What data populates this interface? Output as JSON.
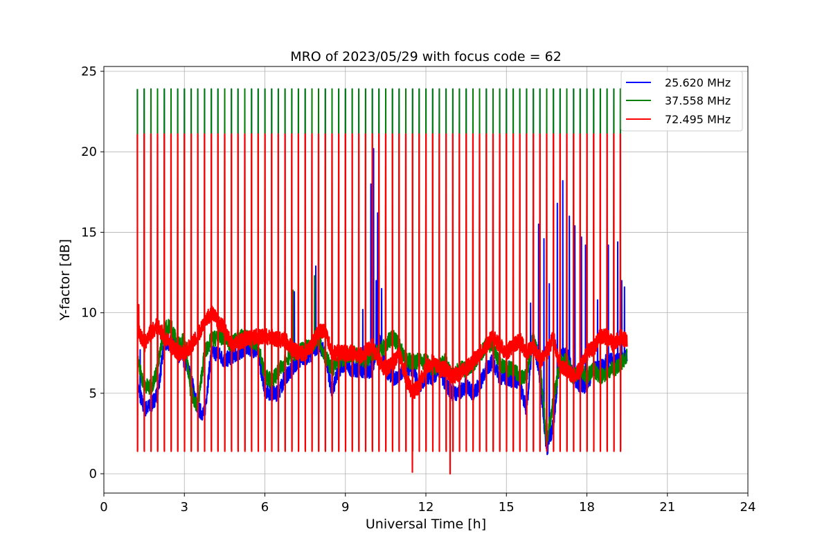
{
  "chart_data": {
    "type": "line",
    "title": "MRO of 2023/05/29 with focus code = 62",
    "xlabel": "Universal Time [h]",
    "ylabel": "Y-factor [dB]",
    "xlim": [
      0,
      24
    ],
    "ylim": [
      -1.2,
      25.3
    ],
    "xticks": [
      0,
      3,
      6,
      9,
      12,
      15,
      18,
      21,
      24
    ],
    "yticks": [
      0,
      5,
      10,
      15,
      20,
      25
    ],
    "grid": true,
    "legend_position": "top-right",
    "pulse_period_h": 0.25,
    "series": [
      {
        "name": "25.620 MHz",
        "color": "#0000ff",
        "pulse_peak": 23.9,
        "pulse_low": 1.5,
        "x": [
          1.25,
          1.5,
          1.75,
          2.0,
          2.25,
          2.5,
          2.75,
          3.0,
          3.25,
          3.5,
          3.75,
          4.0,
          4.25,
          4.5,
          4.75,
          5.0,
          5.25,
          5.5,
          5.75,
          6.0,
          6.25,
          6.5,
          6.75,
          7.0,
          7.25,
          7.5,
          7.75,
          8.0,
          8.25,
          8.5,
          8.75,
          9.0,
          9.25,
          9.5,
          9.75,
          10.0,
          10.25,
          10.5,
          10.75,
          11.0,
          11.25,
          11.5,
          11.75,
          12.0,
          12.25,
          12.5,
          12.75,
          13.0,
          13.25,
          13.5,
          13.75,
          14.0,
          14.25,
          14.5,
          14.75,
          15.0,
          15.25,
          15.5,
          15.75,
          16.0,
          16.25,
          16.5,
          16.75,
          17.0,
          17.25,
          17.5,
          17.75,
          18.0,
          18.25,
          18.5,
          18.75,
          19.0,
          19.25,
          19.5
        ],
        "y": [
          5.5,
          4.0,
          4.2,
          5.0,
          8.0,
          8.2,
          7.5,
          7.0,
          6.0,
          4.0,
          3.7,
          7.5,
          7.5,
          7.0,
          7.3,
          7.5,
          7.8,
          7.8,
          7.5,
          5.2,
          5.0,
          5.0,
          6.0,
          6.5,
          7.0,
          7.2,
          7.5,
          8.0,
          7.5,
          5.0,
          6.5,
          6.8,
          6.5,
          6.5,
          6.3,
          6.5,
          8.5,
          6.5,
          6.0,
          6.0,
          6.5,
          6.5,
          5.5,
          6.0,
          6.0,
          6.5,
          5.5,
          5.0,
          5.0,
          5.5,
          5.0,
          5.5,
          6.5,
          7.0,
          6.0,
          6.0,
          5.8,
          5.5,
          4.0,
          8.5,
          6.0,
          1.5,
          3.0,
          7.5,
          7.5,
          6.0,
          5.5,
          5.5,
          6.5,
          6.5,
          7.0,
          7.0,
          7.0,
          7.5
        ],
        "spikes": [
          [
            1.35,
            7.7
          ],
          [
            3.5,
            1.1
          ],
          [
            7.1,
            11.3
          ],
          [
            7.9,
            12.9
          ],
          [
            9.25,
            8.2
          ],
          [
            9.65,
            10.2
          ],
          [
            9.95,
            18.0
          ],
          [
            10.05,
            20.2
          ],
          [
            10.15,
            12.0
          ],
          [
            10.2,
            16.2
          ],
          [
            10.35,
            11.5
          ],
          [
            15.1,
            7.0
          ],
          [
            15.75,
            13.5
          ],
          [
            15.9,
            10.6
          ],
          [
            16.2,
            15.5
          ],
          [
            16.4,
            14.6
          ],
          [
            16.6,
            11.8
          ],
          [
            16.9,
            16.8
          ],
          [
            17.1,
            18.2
          ],
          [
            17.25,
            17.5
          ],
          [
            17.35,
            16.0
          ],
          [
            17.55,
            15.4
          ],
          [
            17.8,
            14.7
          ],
          [
            17.95,
            14.2
          ],
          [
            18.4,
            10.8
          ],
          [
            18.8,
            14.2
          ],
          [
            19.15,
            14.4
          ],
          [
            19.3,
            12.0
          ],
          [
            19.4,
            11.6
          ]
        ]
      },
      {
        "name": "37.558 MHz",
        "color": "#008000",
        "pulse_peak": 23.9,
        "pulse_low": 1.5,
        "x": [
          1.25,
          1.5,
          1.75,
          2.0,
          2.25,
          2.5,
          2.75,
          3.0,
          3.25,
          3.5,
          3.75,
          4.0,
          4.25,
          4.5,
          4.75,
          5.0,
          5.25,
          5.5,
          5.75,
          6.0,
          6.25,
          6.5,
          6.75,
          7.0,
          7.25,
          7.5,
          7.75,
          8.0,
          8.25,
          8.5,
          8.75,
          9.0,
          9.25,
          9.5,
          9.75,
          10.0,
          10.25,
          10.5,
          10.75,
          11.0,
          11.25,
          11.5,
          11.75,
          12.0,
          12.25,
          12.5,
          12.75,
          13.0,
          13.25,
          13.5,
          13.75,
          14.0,
          14.25,
          14.5,
          14.75,
          15.0,
          15.25,
          15.5,
          15.75,
          16.0,
          16.25,
          16.5,
          16.75,
          17.0,
          17.25,
          17.5,
          17.75,
          18.0,
          18.25,
          18.5,
          18.75,
          19.0,
          19.25,
          19.5
        ],
        "y": [
          7.0,
          5.5,
          5.3,
          6.5,
          9.0,
          9.2,
          8.0,
          8.3,
          5.0,
          4.2,
          7.5,
          8.3,
          8.5,
          8.5,
          8.0,
          8.5,
          8.5,
          8.3,
          8.0,
          6.0,
          5.8,
          6.3,
          7.0,
          7.5,
          7.5,
          7.8,
          8.0,
          8.5,
          7.3,
          6.5,
          7.0,
          7.2,
          7.5,
          7.3,
          7.0,
          7.5,
          7.5,
          8.0,
          8.5,
          8.0,
          7.0,
          7.0,
          7.0,
          7.0,
          6.5,
          6.8,
          7.0,
          6.0,
          6.5,
          6.5,
          6.8,
          7.3,
          8.0,
          8.0,
          6.8,
          6.5,
          6.5,
          6.0,
          6.0,
          8.5,
          6.8,
          2.0,
          4.5,
          7.0,
          7.0,
          6.0,
          6.5,
          6.0,
          6.5,
          6.0,
          6.3,
          6.5,
          6.8,
          7.3
        ],
        "spikes": [
          [
            7.05,
            11.4
          ],
          [
            7.85,
            12.3
          ],
          [
            16.5,
            0.0
          ]
        ]
      },
      {
        "name": "72.495 MHz",
        "color": "#ff0000",
        "pulse_peak": 21.1,
        "pulse_low": 1.4,
        "x": [
          1.25,
          1.5,
          1.75,
          2.0,
          2.25,
          2.5,
          2.75,
          3.0,
          3.25,
          3.5,
          3.75,
          4.0,
          4.25,
          4.5,
          4.75,
          5.0,
          5.25,
          5.5,
          5.75,
          6.0,
          6.25,
          6.5,
          6.75,
          7.0,
          7.25,
          7.5,
          7.75,
          8.0,
          8.25,
          8.5,
          8.75,
          9.0,
          9.25,
          9.5,
          9.75,
          10.0,
          10.25,
          10.5,
          10.75,
          11.0,
          11.25,
          11.5,
          11.75,
          12.0,
          12.25,
          12.5,
          12.75,
          13.0,
          13.25,
          13.5,
          13.75,
          14.0,
          14.25,
          14.5,
          14.75,
          15.0,
          15.25,
          15.5,
          15.75,
          16.0,
          16.25,
          16.5,
          16.75,
          17.0,
          17.25,
          17.5,
          17.75,
          18.0,
          18.25,
          18.5,
          18.75,
          19.0,
          19.25,
          19.5
        ],
        "y": [
          9.0,
          8.0,
          8.8,
          9.2,
          8.5,
          8.0,
          7.5,
          7.5,
          8.0,
          8.5,
          9.5,
          10.0,
          9.5,
          9.0,
          8.0,
          8.2,
          8.3,
          8.5,
          8.5,
          8.5,
          8.5,
          8.3,
          8.3,
          7.8,
          7.5,
          7.5,
          8.0,
          8.8,
          9.0,
          7.5,
          7.5,
          7.5,
          7.5,
          7.3,
          7.5,
          8.0,
          7.0,
          6.5,
          6.8,
          7.5,
          6.0,
          5.0,
          5.5,
          6.5,
          7.0,
          6.5,
          6.5,
          6.0,
          6.3,
          6.5,
          7.0,
          7.5,
          8.0,
          8.5,
          8.0,
          7.5,
          8.0,
          8.3,
          7.5,
          8.0,
          7.0,
          7.5,
          8.5,
          6.5,
          6.5,
          6.0,
          6.5,
          7.5,
          7.8,
          8.5,
          8.5,
          8.0,
          8.5,
          8.2
        ],
        "spikes": [
          [
            1.3,
            10.5
          ],
          [
            11.5,
            0.1
          ],
          [
            12.9,
            0.0
          ],
          [
            16.5,
            1.5
          ]
        ]
      }
    ]
  }
}
